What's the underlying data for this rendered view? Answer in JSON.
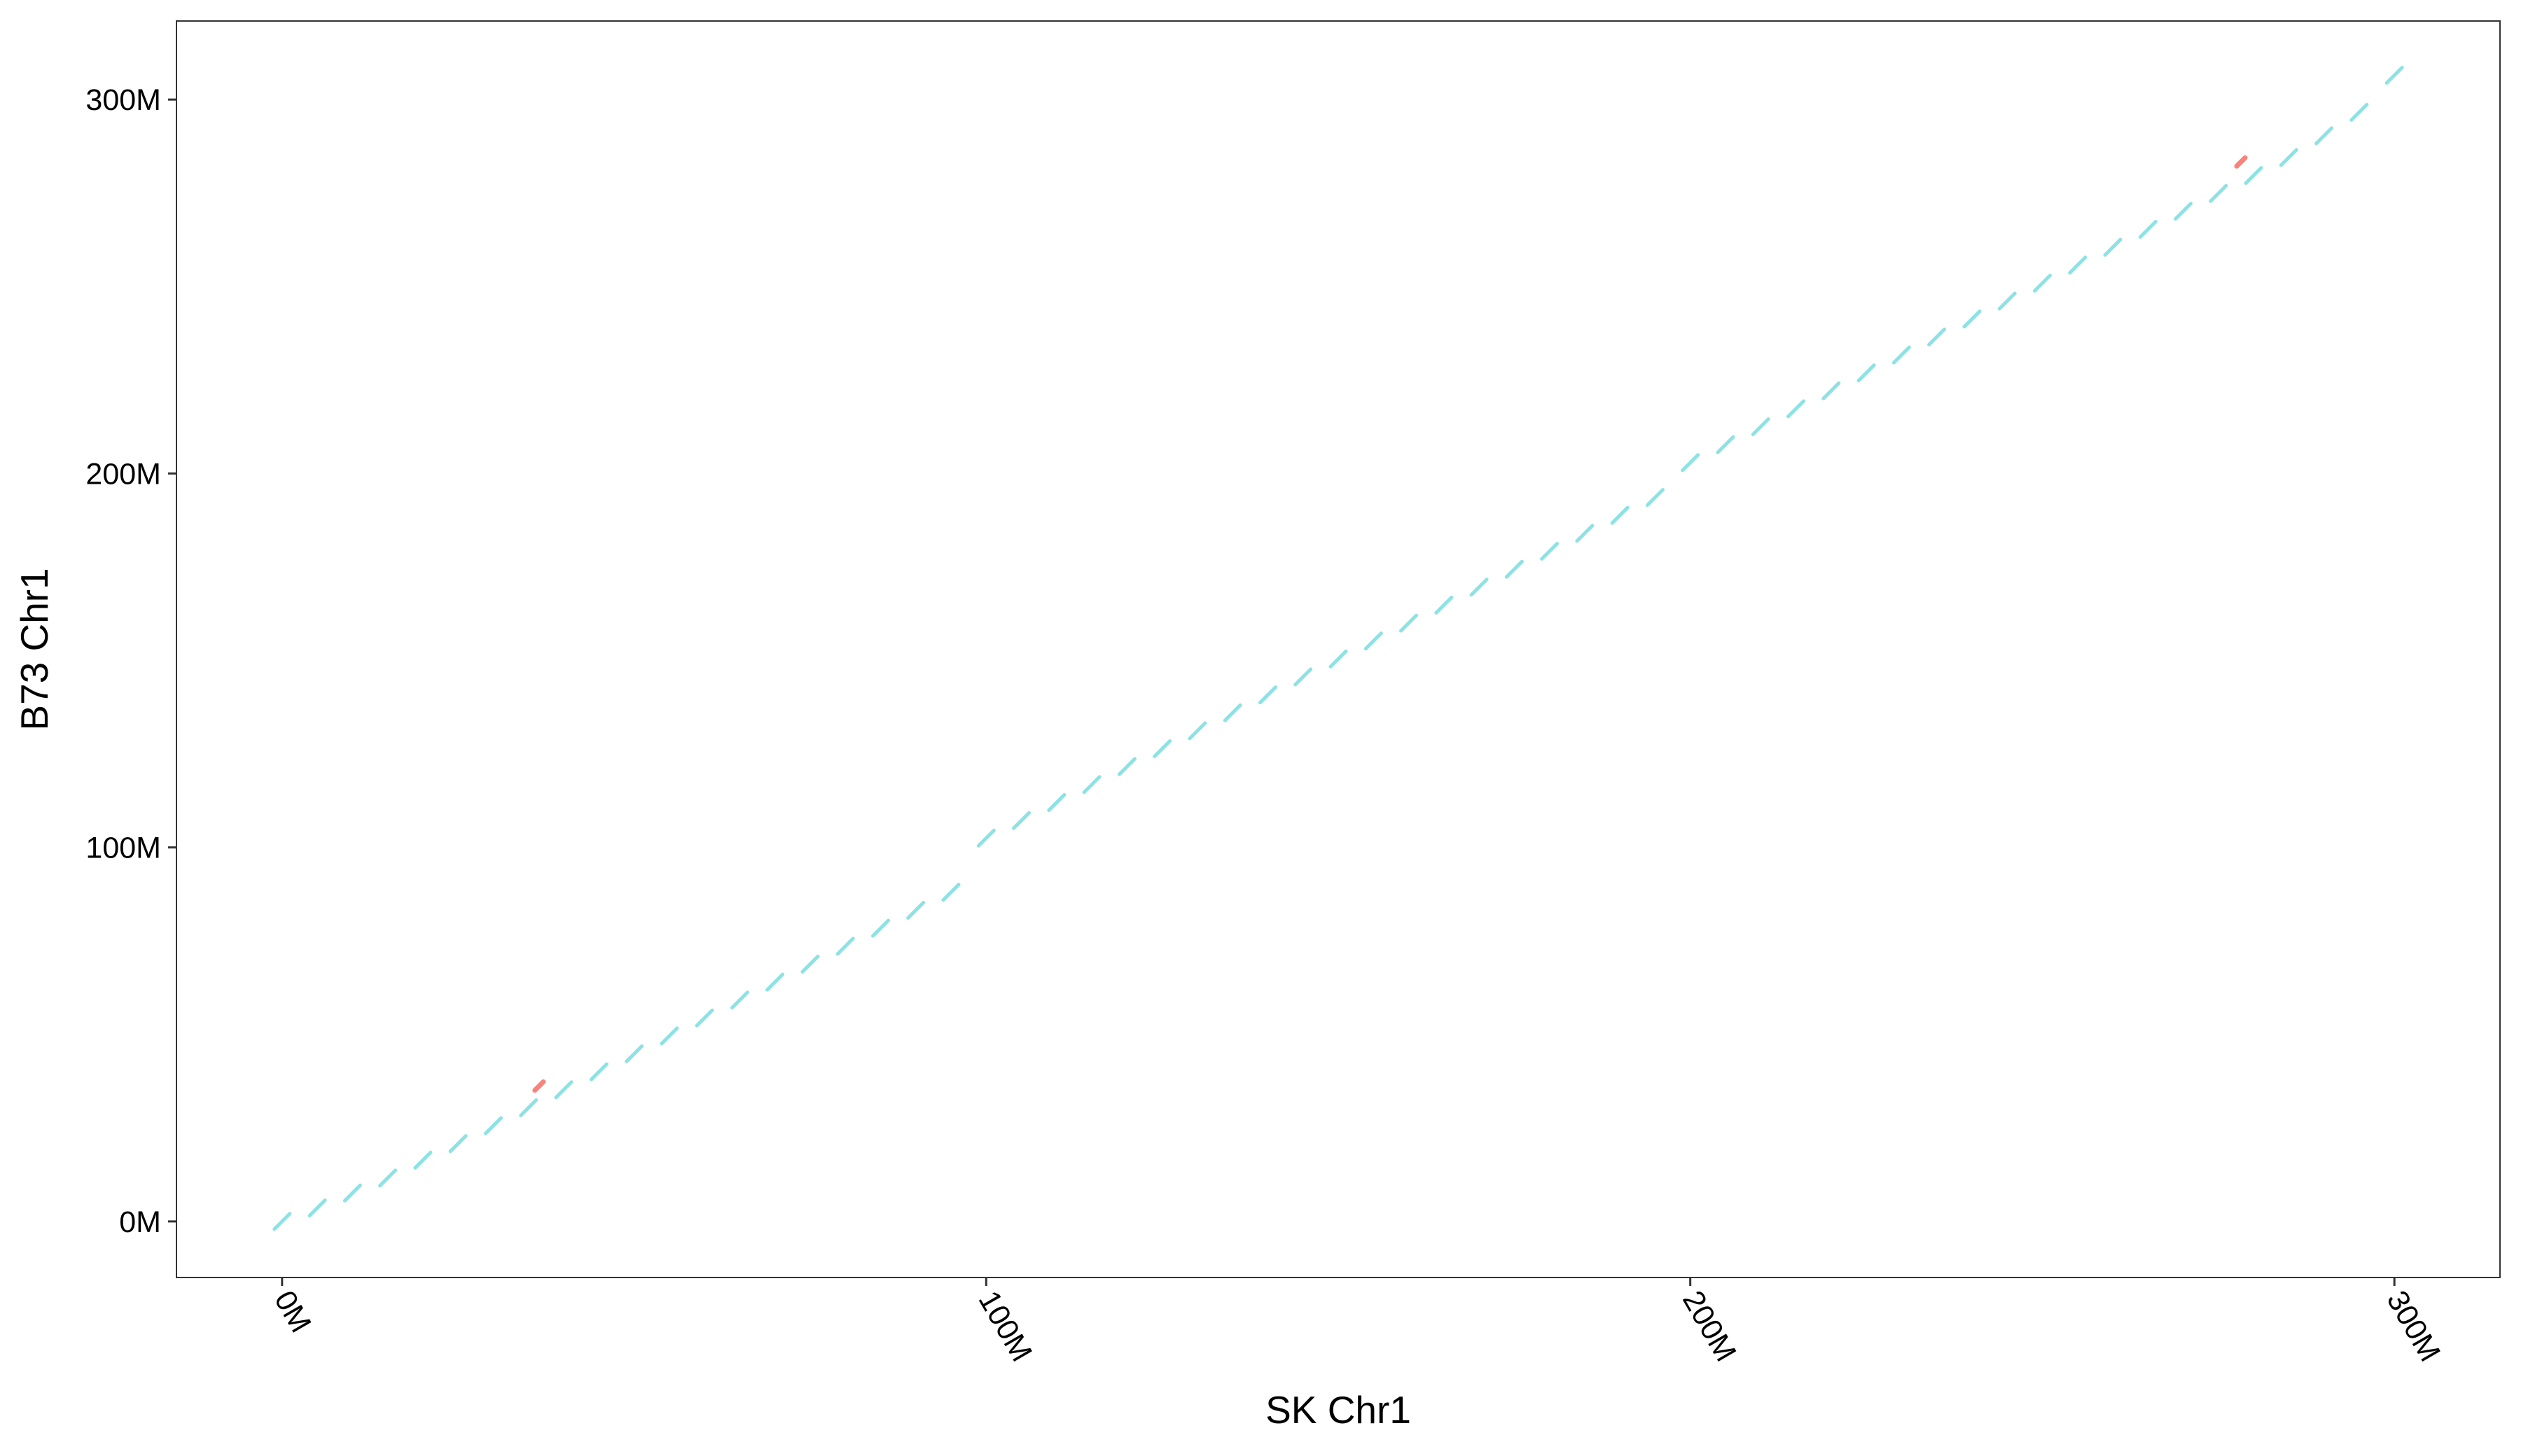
{
  "chart_data": {
    "type": "scatter",
    "xlabel": "SK Chr1",
    "ylabel": "B73 Chr1",
    "xlim": [
      -15,
      315
    ],
    "ylim": [
      -15,
      321
    ],
    "x_ticks": [
      0,
      100,
      200,
      300
    ],
    "x_tick_labels": [
      "0M",
      "100M",
      "200M",
      "300M"
    ],
    "y_ticks": [
      0,
      100,
      200,
      300
    ],
    "y_tick_labels": [
      "0M",
      "100M",
      "200M",
      "300M"
    ],
    "grid": false,
    "legend": "none",
    "units": "Mb",
    "series": [
      {
        "color": "#00BFC4",
        "points": [
          [
            0.0,
            0.0
          ],
          [
            5.0,
            3.6
          ],
          [
            10.0,
            7.6
          ],
          [
            15.0,
            11.6
          ],
          [
            20.0,
            16.4
          ],
          [
            25.0,
            20.8
          ],
          [
            30.0,
            25.6
          ],
          [
            35.0,
            30.4
          ],
          [
            40.0,
            35.2
          ],
          [
            45.0,
            40.0
          ],
          [
            50.0,
            44.8
          ],
          [
            55.0,
            49.6
          ],
          [
            60.0,
            54.4
          ],
          [
            65.0,
            59.2
          ],
          [
            70.0,
            64.0
          ],
          [
            75.0,
            68.8
          ],
          [
            80.0,
            73.6
          ],
          [
            85.0,
            78.4
          ],
          [
            90.0,
            83.2
          ],
          [
            95.0,
            88.0
          ],
          [
            100.0,
            102.5
          ],
          [
            105.0,
            107.2
          ],
          [
            110.0,
            112.0
          ],
          [
            115.0,
            116.8
          ],
          [
            120.0,
            121.6
          ],
          [
            125.0,
            126.4
          ],
          [
            130.0,
            131.2
          ],
          [
            135.0,
            136.0
          ],
          [
            140.0,
            140.8
          ],
          [
            145.0,
            145.6
          ],
          [
            150.0,
            150.4
          ],
          [
            155.0,
            155.2
          ],
          [
            160.0,
            160.0
          ],
          [
            165.0,
            164.8
          ],
          [
            170.0,
            169.6
          ],
          [
            175.0,
            174.4
          ],
          [
            180.0,
            179.2
          ],
          [
            185.0,
            184.0
          ],
          [
            190.0,
            188.8
          ],
          [
            195.0,
            193.6
          ],
          [
            200.0,
            202.9
          ],
          [
            205.0,
            207.7
          ],
          [
            210.0,
            212.5
          ],
          [
            215.0,
            217.3
          ],
          [
            220.0,
            222.1
          ],
          [
            225.0,
            226.9
          ],
          [
            230.0,
            231.7
          ],
          [
            235.0,
            236.5
          ],
          [
            240.0,
            241.3
          ],
          [
            245.0,
            246.1
          ],
          [
            250.0,
            250.9
          ],
          [
            255.0,
            255.7
          ],
          [
            260.0,
            260.5
          ],
          [
            265.0,
            265.3
          ],
          [
            270.0,
            270.1
          ],
          [
            275.0,
            274.9
          ],
          [
            280.0,
            279.7
          ],
          [
            285.0,
            284.5
          ],
          [
            290.0,
            290.3
          ],
          [
            295.0,
            296.6
          ],
          [
            300.0,
            306.5
          ]
        ]
      },
      {
        "color": "#F8766D",
        "points": [
          [
            36.5,
            36.2
          ],
          [
            278.2,
            283.3
          ]
        ]
      }
    ]
  }
}
